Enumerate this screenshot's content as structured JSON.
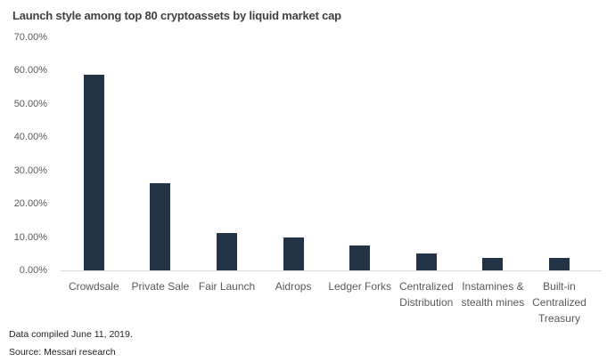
{
  "chart_data": {
    "type": "bar",
    "title": "Launch style among top 80 cryptoassets by liquid market cap",
    "categories": [
      "Crowdsale",
      "Private Sale",
      "Fair Launch",
      "Aidrops",
      "Ledger Forks",
      "Centralized Distribution",
      "Instamines & stealth mines",
      "Built-in Centralized Treasury"
    ],
    "category_lines": [
      [
        "Crowdsale"
      ],
      [
        "Private Sale"
      ],
      [
        "Fair Launch"
      ],
      [
        "Aidrops"
      ],
      [
        "Ledger Forks"
      ],
      [
        "Centralized",
        "Distribution"
      ],
      [
        "Instamines &",
        "stealth mines"
      ],
      [
        "Built-in",
        "Centralized",
        "Treasury"
      ]
    ],
    "values": [
      58.75,
      26.25,
      11.25,
      10,
      7.5,
      5,
      3.75,
      3.75
    ],
    "xlabel": "",
    "ylabel": "",
    "ylim": [
      0,
      70
    ],
    "grid": false,
    "legend": false,
    "yticks": [
      {
        "value": 70,
        "label": "70.00%"
      },
      {
        "value": 60,
        "label": "60.00%"
      },
      {
        "value": 50,
        "label": "50.00%"
      },
      {
        "value": 40,
        "label": "40.00%"
      },
      {
        "value": 30,
        "label": "30.00%"
      },
      {
        "value": 20,
        "label": "20.00%"
      },
      {
        "value": 10,
        "label": "10.00%"
      },
      {
        "value": 0,
        "label": "0.00%"
      }
    ],
    "colors": {
      "bar": "#213344",
      "axis_line": "#d9d9d9",
      "tick_label": "#595959",
      "title": "#404040",
      "footnote": "#1f1f1f"
    }
  },
  "footer": {
    "line1": "Data compiled June 11, 2019.",
    "line2": "Source: Messari research"
  }
}
